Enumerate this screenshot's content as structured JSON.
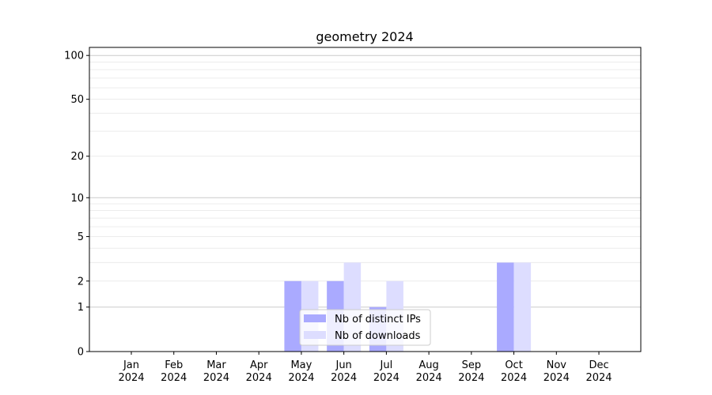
{
  "chart_data": {
    "type": "bar",
    "title": "geometry 2024",
    "xlabel": "",
    "ylabel": "",
    "categories": [
      "Jan\n2024",
      "Feb\n2024",
      "Mar\n2024",
      "Apr\n2024",
      "May\n2024",
      "Jun\n2024",
      "Jul\n2024",
      "Aug\n2024",
      "Sep\n2024",
      "Oct\n2024",
      "Nov\n2024",
      "Dec\n2024"
    ],
    "series": [
      {
        "name": "Nb of distinct IPs",
        "color": "#aaaaff",
        "values": [
          0,
          0,
          0,
          0,
          2,
          2,
          1,
          0,
          0,
          3,
          0,
          0
        ]
      },
      {
        "name": "Nb of downloads",
        "color": "#ddddff",
        "values": [
          0,
          0,
          0,
          0,
          2,
          3,
          2,
          0,
          0,
          3,
          0,
          0
        ]
      }
    ],
    "yscale": "log(1+y)",
    "yticks": [
      0,
      1,
      2,
      5,
      10,
      20,
      50,
      100
    ],
    "ylim": [
      0,
      114
    ],
    "grid": true,
    "legend": "lower-center"
  }
}
